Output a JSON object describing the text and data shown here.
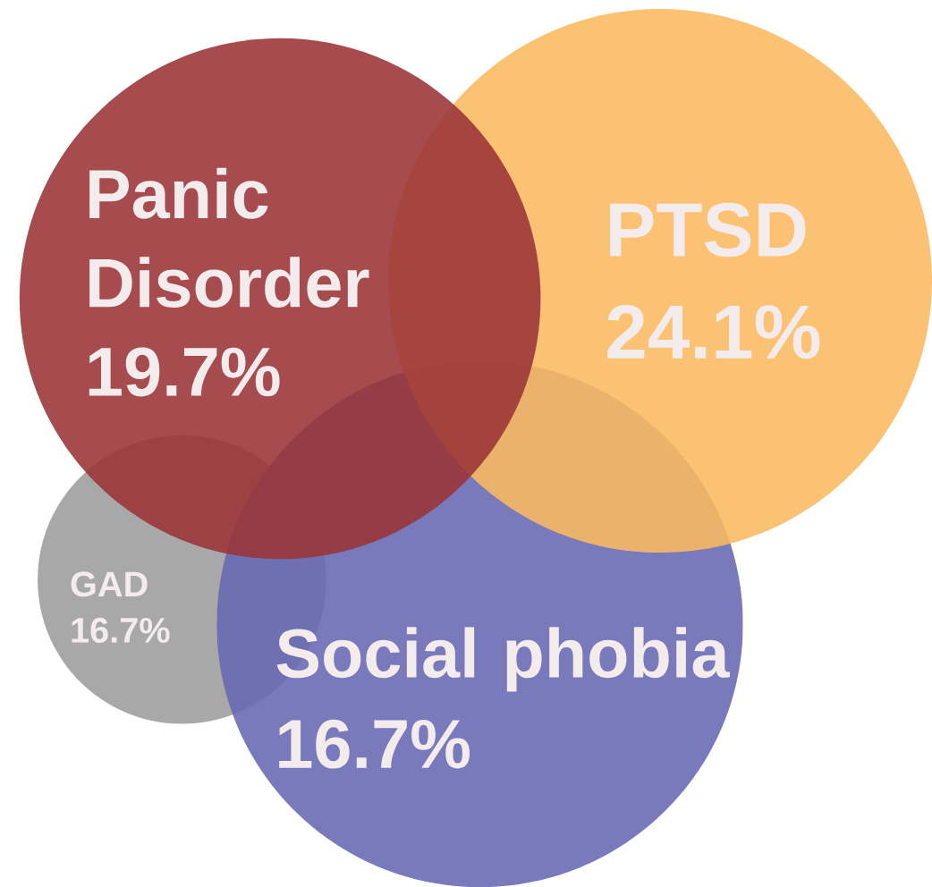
{
  "chart_data": {
    "type": "other",
    "categories": [
      "Panic Disorder",
      "PTSD",
      "Social phobia",
      "GAD"
    ],
    "values": [
      19.7,
      24.1,
      16.7,
      16.7
    ],
    "value_labels": [
      "19.7%",
      "24.1%",
      "16.7%",
      "16.7%"
    ],
    "colors": [
      "#9a3336",
      "#fbb960",
      "#6668b3",
      "#9c9c9c"
    ]
  }
}
